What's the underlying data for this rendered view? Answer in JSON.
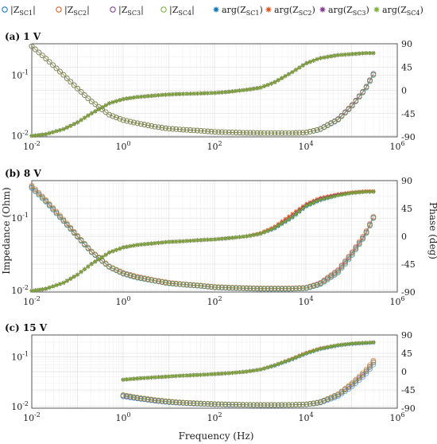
{
  "chart_data": {
    "type": "line",
    "xlabel": "Frequency (Hz)",
    "ylabel_left": "Impedance (Ohm)",
    "ylabel_right": "Phase (deg)",
    "x_scale": "log",
    "xlim": [
      0.01,
      1000000
    ],
    "x_ticks": [
      "10^-2",
      "10^0",
      "10^2",
      "10^4",
      "10^6"
    ],
    "y_left_scale": "log",
    "y_left_ticks": [
      "10^-2",
      "10^-1"
    ],
    "y_right_ticks": [
      "-90",
      "-45",
      "0",
      "45",
      "90"
    ],
    "grid": true,
    "legend": {
      "placement": "top",
      "entries": [
        {
          "label": "|Z_SC1|",
          "main": "|Z",
          "sub": "SC1",
          "tail": "|",
          "marker": "open-circle",
          "color": "#0072BD"
        },
        {
          "label": "|Z_SC2|",
          "main": "|Z",
          "sub": "SC2",
          "tail": "|",
          "marker": "open-circle",
          "color": "#D95319"
        },
        {
          "label": "|Z_SC3|",
          "main": "|Z",
          "sub": "SC3",
          "tail": "|",
          "marker": "open-circle",
          "color": "#7E2F8E"
        },
        {
          "label": "|Z_SC4|",
          "main": "|Z",
          "sub": "SC4",
          "tail": "|",
          "marker": "open-circle",
          "color": "#77AC30"
        },
        {
          "label": "arg(Z_SC1)",
          "main": "arg(Z",
          "sub": "SC1",
          "tail": ")",
          "marker": "star",
          "color": "#0072BD"
        },
        {
          "label": "arg(Z_SC2)",
          "main": "arg(Z",
          "sub": "SC2",
          "tail": ")",
          "marker": "star",
          "color": "#D95319"
        },
        {
          "label": "arg(Z_SC3)",
          "main": "arg(Z",
          "sub": "SC3",
          "tail": ")",
          "marker": "star",
          "color": "#7E2F8E"
        },
        {
          "label": "arg(Z_SC4)",
          "main": "arg(Z",
          "sub": "SC4",
          "tail": ")",
          "marker": "star",
          "color": "#77AC30"
        }
      ]
    },
    "panels": [
      {
        "title": "(a)   1 V",
        "series_magnitude": {
          "freq": [
            0.01,
            0.02,
            0.05,
            0.1,
            0.2,
            0.5,
            1,
            2,
            5,
            10,
            20,
            50,
            100,
            200,
            500,
            1000,
            2000,
            5000,
            10000,
            20000,
            50000,
            100000,
            200000,
            300000
          ],
          "SC1": [
            0.3,
            0.19,
            0.1,
            0.06,
            0.037,
            0.022,
            0.018,
            0.016,
            0.014,
            0.013,
            0.0125,
            0.012,
            0.0115,
            0.0113,
            0.0111,
            0.011,
            0.011,
            0.011,
            0.0112,
            0.0125,
            0.018,
            0.03,
            0.058,
            0.1
          ],
          "SC2": [
            0.3,
            0.19,
            0.1,
            0.06,
            0.037,
            0.022,
            0.018,
            0.016,
            0.014,
            0.013,
            0.0125,
            0.012,
            0.0115,
            0.0113,
            0.0111,
            0.011,
            0.011,
            0.011,
            0.0112,
            0.0127,
            0.0185,
            0.031,
            0.06,
            0.105
          ],
          "SC3": [
            0.3,
            0.19,
            0.1,
            0.06,
            0.037,
            0.022,
            0.018,
            0.016,
            0.014,
            0.013,
            0.0125,
            0.012,
            0.0115,
            0.0113,
            0.0111,
            0.011,
            0.011,
            0.011,
            0.0112,
            0.0127,
            0.0185,
            0.031,
            0.06,
            0.105
          ],
          "SC4": [
            0.3,
            0.19,
            0.1,
            0.06,
            0.037,
            0.022,
            0.018,
            0.016,
            0.014,
            0.013,
            0.0125,
            0.012,
            0.0115,
            0.0113,
            0.0111,
            0.011,
            0.011,
            0.011,
            0.0112,
            0.0126,
            0.0182,
            0.03,
            0.059,
            0.102
          ]
        },
        "series_phase": {
          "freq": [
            0.01,
            0.02,
            0.05,
            0.1,
            0.2,
            0.5,
            1,
            2,
            5,
            10,
            20,
            50,
            100,
            200,
            500,
            1000,
            2000,
            5000,
            10000,
            20000,
            50000,
            100000,
            200000,
            300000
          ],
          "SC1": [
            -88,
            -85,
            -75,
            -62,
            -45,
            -25,
            -17,
            -13,
            -10,
            -8,
            -7,
            -6,
            -5,
            -3,
            1,
            5,
            15,
            35,
            52,
            62,
            68,
            70,
            72,
            72
          ],
          "SC2": [
            -88,
            -85,
            -75,
            -62,
            -45,
            -25,
            -17,
            -13,
            -10,
            -8,
            -7,
            -6,
            -5,
            -3,
            1,
            5,
            15,
            35,
            52,
            62,
            68,
            70,
            72,
            72
          ],
          "SC3": [
            -88,
            -85,
            -75,
            -62,
            -45,
            -25,
            -17,
            -13,
            -10,
            -8,
            -7,
            -6,
            -5,
            -3,
            1,
            5,
            15,
            35,
            52,
            62,
            68,
            70,
            72,
            72
          ],
          "SC4": [
            -88,
            -85,
            -75,
            -62,
            -45,
            -25,
            -17,
            -13,
            -10,
            -8,
            -7,
            -6,
            -5,
            -3,
            1,
            5,
            15,
            35,
            52,
            62,
            68,
            70,
            72,
            72
          ]
        }
      },
      {
        "title": "(b)   8 V",
        "series_magnitude": {
          "freq": [
            0.01,
            0.02,
            0.05,
            0.1,
            0.2,
            0.5,
            1,
            2,
            5,
            10,
            20,
            50,
            100,
            200,
            500,
            1000,
            2000,
            5000,
            10000,
            20000,
            50000,
            100000,
            200000,
            300000
          ],
          "SC1": [
            0.26,
            0.17,
            0.09,
            0.055,
            0.034,
            0.021,
            0.017,
            0.015,
            0.0135,
            0.0125,
            0.012,
            0.0115,
            0.011,
            0.0108,
            0.0106,
            0.0105,
            0.0105,
            0.0105,
            0.0107,
            0.012,
            0.0175,
            0.03,
            0.058,
            0.1
          ],
          "SC2": [
            0.28,
            0.18,
            0.095,
            0.057,
            0.035,
            0.0215,
            0.0175,
            0.0155,
            0.0138,
            0.0128,
            0.0122,
            0.0117,
            0.0112,
            0.011,
            0.0108,
            0.0107,
            0.0107,
            0.0107,
            0.0109,
            0.0125,
            0.019,
            0.033,
            0.062,
            0.105
          ],
          "SC3": [
            0.27,
            0.175,
            0.092,
            0.056,
            0.0345,
            0.0212,
            0.0172,
            0.0152,
            0.0136,
            0.0126,
            0.0121,
            0.0116,
            0.0111,
            0.0109,
            0.0107,
            0.0106,
            0.0106,
            0.0106,
            0.0108,
            0.0123,
            0.0185,
            0.032,
            0.06,
            0.102
          ],
          "SC4": [
            0.27,
            0.175,
            0.092,
            0.056,
            0.0345,
            0.0212,
            0.0172,
            0.0152,
            0.0136,
            0.0126,
            0.0121,
            0.0116,
            0.0111,
            0.0109,
            0.0107,
            0.0106,
            0.0106,
            0.0106,
            0.0108,
            0.0122,
            0.018,
            0.031,
            0.059,
            0.101
          ]
        },
        "series_phase": {
          "freq": [
            0.01,
            0.02,
            0.05,
            0.1,
            0.2,
            0.5,
            1,
            2,
            5,
            10,
            20,
            50,
            100,
            200,
            500,
            1000,
            2000,
            5000,
            10000,
            20000,
            50000,
            100000,
            200000,
            300000
          ],
          "SC1": [
            -88,
            -85,
            -75,
            -62,
            -45,
            -26,
            -18,
            -14,
            -11,
            -9,
            -8,
            -6,
            -5,
            -3,
            0,
            4,
            12,
            30,
            48,
            58,
            66,
            70,
            72,
            72
          ],
          "SC2": [
            -88,
            -85,
            -75,
            -62,
            -45,
            -26,
            -18,
            -14,
            -11,
            -9,
            -8,
            -6,
            -5,
            -3,
            0,
            5,
            15,
            36,
            52,
            62,
            68,
            71,
            73,
            73
          ],
          "SC3": [
            -88,
            -85,
            -75,
            -62,
            -45,
            -26,
            -18,
            -14,
            -11,
            -9,
            -8,
            -6,
            -5,
            -3,
            0,
            4,
            13,
            32,
            50,
            60,
            67,
            70,
            72,
            72
          ],
          "SC4": [
            -88,
            -85,
            -75,
            -62,
            -45,
            -26,
            -18,
            -14,
            -11,
            -9,
            -8,
            -6,
            -5,
            -3,
            0,
            4,
            13,
            31,
            49,
            59,
            66,
            70,
            72,
            72
          ]
        }
      },
      {
        "title": "(c)   15 V",
        "series_magnitude": {
          "freq": [
            1,
            2,
            5,
            10,
            20,
            50,
            100,
            200,
            500,
            1000,
            2000,
            5000,
            10000,
            20000,
            50000,
            100000,
            200000,
            300000
          ],
          "SC1": [
            0.016,
            0.0145,
            0.013,
            0.0122,
            0.0117,
            0.0113,
            0.011,
            0.0108,
            0.0107,
            0.0106,
            0.0106,
            0.0107,
            0.0109,
            0.0118,
            0.016,
            0.025,
            0.044,
            0.07
          ],
          "SC2": [
            0.017,
            0.0152,
            0.0135,
            0.0126,
            0.012,
            0.0115,
            0.0112,
            0.011,
            0.0108,
            0.0107,
            0.0107,
            0.0108,
            0.011,
            0.0122,
            0.0175,
            0.029,
            0.053,
            0.085
          ],
          "SC3": [
            0.0165,
            0.0148,
            0.0132,
            0.0124,
            0.0118,
            0.0114,
            0.0111,
            0.0109,
            0.0108,
            0.0107,
            0.0107,
            0.0108,
            0.011,
            0.012,
            0.017,
            0.027,
            0.048,
            0.078
          ],
          "SC4": [
            0.017,
            0.015,
            0.0134,
            0.0125,
            0.0119,
            0.0115,
            0.0112,
            0.011,
            0.0108,
            0.0107,
            0.0107,
            0.0108,
            0.011,
            0.0121,
            0.0172,
            0.028,
            0.05,
            0.08
          ]
        },
        "series_phase": {
          "freq": [
            1,
            2,
            5,
            10,
            20,
            50,
            100,
            200,
            500,
            1000,
            2000,
            5000,
            10000,
            20000,
            50000,
            100000,
            200000,
            300000
          ],
          "SC1": [
            -20,
            -17,
            -14,
            -12,
            -10,
            -8,
            -6,
            -4,
            0,
            5,
            14,
            30,
            44,
            55,
            64,
            68,
            70,
            71
          ],
          "SC2": [
            -20,
            -17,
            -14,
            -12,
            -10,
            -8,
            -6,
            -4,
            0,
            5,
            15,
            32,
            46,
            57,
            65,
            69,
            71,
            72
          ],
          "SC3": [
            -20,
            -17,
            -14,
            -12,
            -10,
            -8,
            -6,
            -4,
            0,
            5,
            15,
            31,
            45,
            56,
            65,
            69,
            71,
            72
          ],
          "SC4": [
            -20,
            -17,
            -14,
            -12,
            -10,
            -8,
            -6,
            -4,
            0,
            5,
            15,
            31,
            45,
            56,
            65,
            69,
            71,
            72
          ]
        }
      }
    ]
  }
}
